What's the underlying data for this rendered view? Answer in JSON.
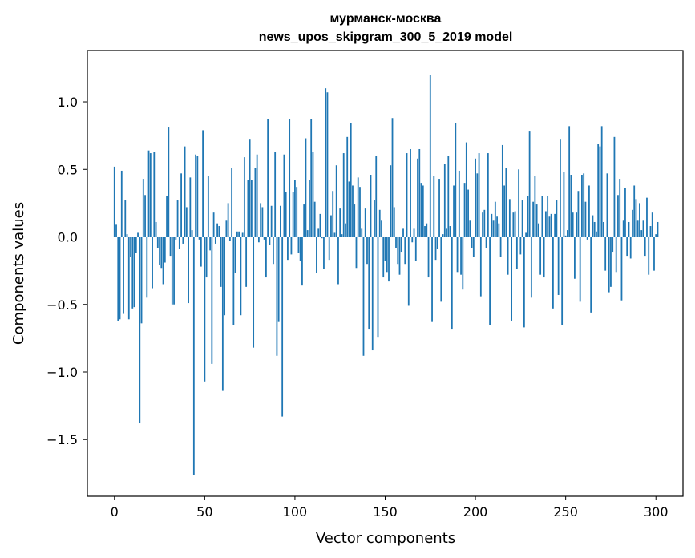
{
  "chart_data": {
    "type": "bar",
    "title": "мурманск-москва",
    "subtitle": "news_upos_skipgram_300_5_2019 model",
    "xlabel": "Vector components",
    "ylabel": "Components values",
    "xlim": [
      -15,
      315
    ],
    "ylim": [
      -1.92,
      1.38
    ],
    "xticks": [
      0,
      50,
      100,
      150,
      200,
      250,
      300
    ],
    "xtick_labels": [
      "0",
      "50",
      "100",
      "150",
      "200",
      "250",
      "300"
    ],
    "yticks": [
      -1.5,
      -1.0,
      -0.5,
      0.0,
      0.5,
      1.0
    ],
    "ytick_labels": [
      "−1.5",
      "−1.0",
      "−0.5",
      "0.0",
      "0.5",
      "1.0"
    ],
    "bar_color": "#1f77b4",
    "grid": false,
    "values": [
      0.52,
      0.09,
      -0.62,
      -0.61,
      0.49,
      -0.57,
      0.27,
      0.02,
      -0.61,
      -0.15,
      -0.53,
      -0.52,
      -0.12,
      0.03,
      -1.38,
      -0.64,
      0.43,
      0.31,
      -0.45,
      0.64,
      0.62,
      -0.38,
      0.63,
      0.11,
      -0.08,
      -0.21,
      -0.23,
      -0.35,
      -0.19,
      0.3,
      0.81,
      -0.14,
      -0.5,
      -0.5,
      -0.02,
      0.27,
      -0.09,
      0.47,
      -0.05,
      0.67,
      0.22,
      -0.49,
      0.44,
      0.05,
      -1.76,
      0.61,
      0.6,
      -0.02,
      -0.22,
      0.79,
      -1.07,
      -0.3,
      0.45,
      -0.1,
      -0.94,
      0.18,
      -0.05,
      0.1,
      0.08,
      -0.37,
      -1.14,
      -0.58,
      0.12,
      0.25,
      -0.03,
      0.51,
      -0.65,
      -0.27,
      0.04,
      0.04,
      -0.58,
      0.03,
      0.59,
      -0.37,
      0.42,
      0.72,
      0.42,
      -0.82,
      0.51,
      0.61,
      -0.04,
      0.25,
      0.22,
      -0.02,
      -0.3,
      0.87,
      -0.06,
      0.23,
      -0.2,
      0.63,
      -0.88,
      -0.63,
      0.23,
      -1.33,
      0.61,
      0.33,
      -0.17,
      0.87,
      -0.13,
      0.33,
      0.42,
      0.37,
      -0.12,
      -0.18,
      -0.36,
      0.24,
      0.73,
      0.05,
      0.42,
      0.87,
      0.63,
      0.26,
      -0.27,
      0.06,
      0.17,
      -0.01,
      -0.24,
      1.1,
      1.07,
      -0.17,
      0.16,
      0.34,
      0.03,
      0.53,
      -0.35,
      0.21,
      0.02,
      0.62,
      0.1,
      0.74,
      0.41,
      0.84,
      0.38,
      0.24,
      -0.23,
      0.44,
      0.37,
      0.06,
      -0.88,
      0.21,
      -0.2,
      -0.68,
      0.46,
      -0.84,
      0.27,
      0.6,
      -0.74,
      0.2,
      0.12,
      -0.3,
      -0.18,
      -0.26,
      -0.33,
      0.53,
      0.88,
      0.22,
      -0.08,
      -0.2,
      -0.28,
      -0.11,
      0.06,
      -0.2,
      0.62,
      -0.51,
      0.65,
      -0.04,
      0.06,
      -0.18,
      0.58,
      0.65,
      0.4,
      0.38,
      0.08,
      0.1,
      -0.3,
      1.2,
      -0.63,
      0.45,
      -0.17,
      -0.09,
      0.43,
      -0.48,
      0.02,
      0.54,
      0.06,
      0.6,
      0.08,
      -0.68,
      0.38,
      0.84,
      -0.26,
      0.49,
      -0.28,
      -0.39,
      0.4,
      0.7,
      0.35,
      0.12,
      -0.08,
      -0.15,
      0.58,
      0.47,
      0.62,
      -0.44,
      0.18,
      0.2,
      -0.08,
      0.62,
      -0.65,
      0.17,
      0.12,
      0.26,
      0.15,
      0.1,
      -0.15,
      0.68,
      0.38,
      0.51,
      -0.28,
      0.28,
      -0.62,
      0.18,
      0.19,
      -0.24,
      0.5,
      -0.13,
      0.27,
      -0.67,
      0.03,
      0.3,
      0.78,
      -0.45,
      0.26,
      0.45,
      0.24,
      0.1,
      -0.28,
      0.3,
      -0.3,
      0.19,
      0.3,
      0.15,
      0.17,
      -0.53,
      0.17,
      0.27,
      -0.43,
      0.72,
      -0.65,
      0.48,
      0.01,
      0.05,
      0.82,
      0.46,
      0.18,
      -0.31,
      0.18,
      0.34,
      -0.48,
      0.46,
      0.47,
      0.26,
      -0.02,
      0.38,
      -0.56,
      0.16,
      0.11,
      0.04,
      0.69,
      0.67,
      0.82,
      0.11,
      -0.25,
      0.47,
      -0.41,
      -0.37,
      -0.11,
      0.74,
      -0.26,
      0.31,
      0.43,
      -0.47,
      0.12,
      0.36,
      -0.14,
      0.11,
      -0.16,
      0.2,
      0.38,
      0.28,
      0.12,
      0.25,
      0.05,
      0.12,
      -0.14,
      0.29,
      -0.28,
      0.08,
      0.18,
      -0.25,
      0.02,
      0.11
    ]
  }
}
